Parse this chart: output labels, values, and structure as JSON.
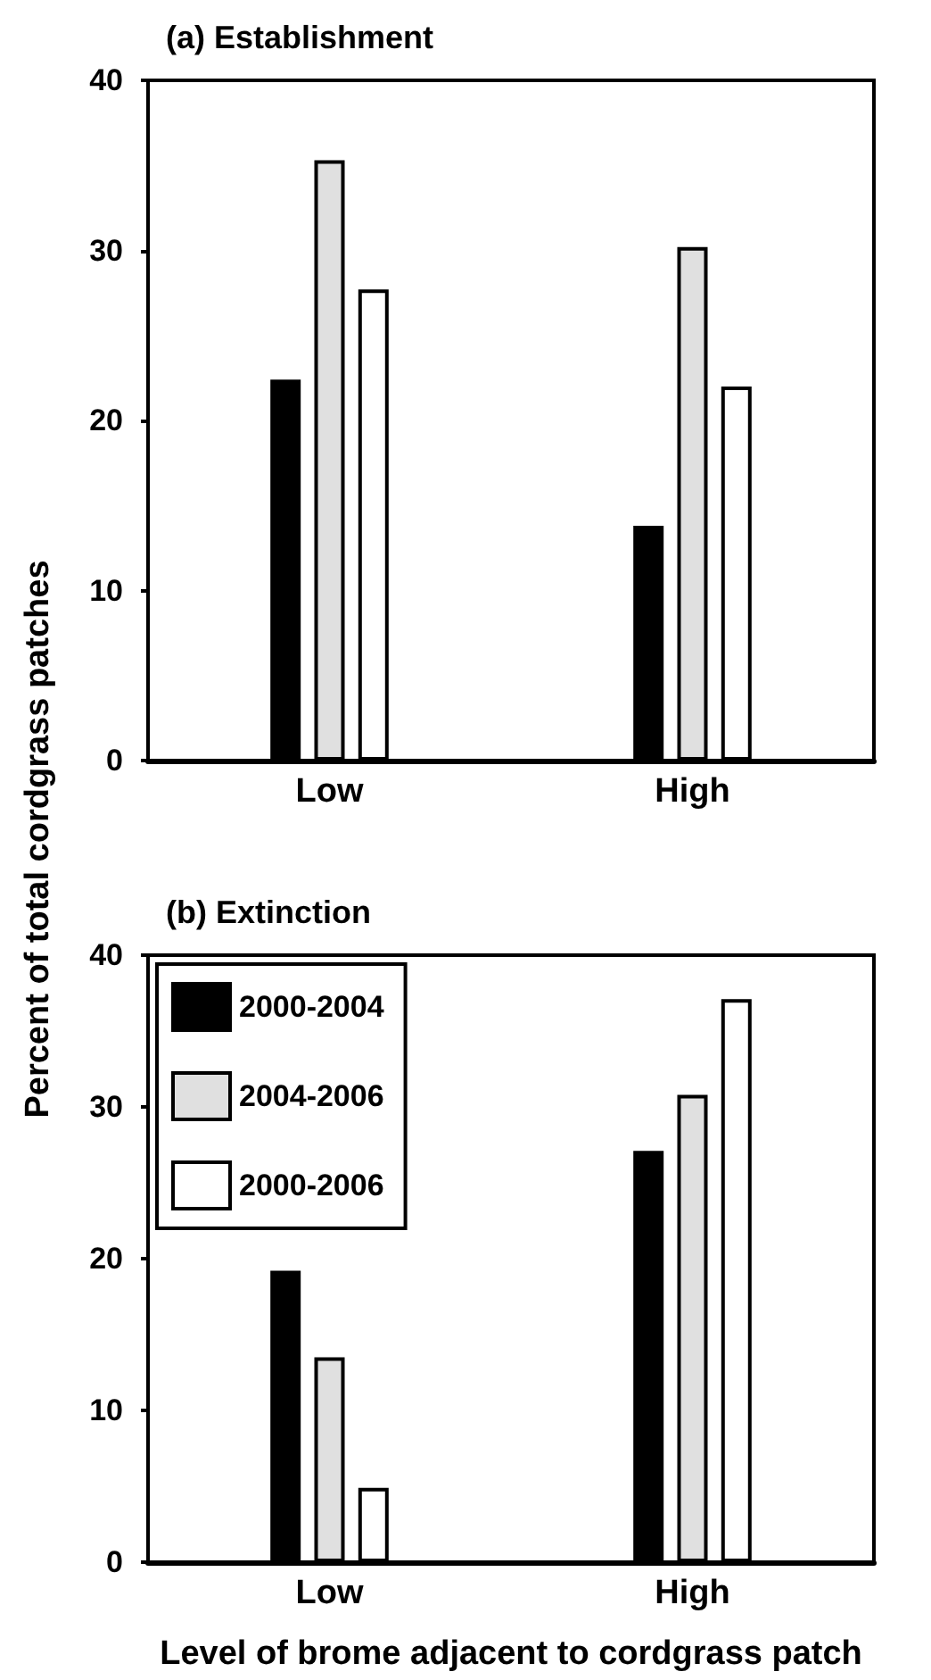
{
  "chart_data": [
    {
      "type": "bar",
      "title": "(a) Establishment",
      "ylabel": "Percent of total cordgrass patches",
      "categories": [
        "Low",
        "High"
      ],
      "series": [
        {
          "color": "#000000",
          "values": [
            22.4,
            13.8
          ]
        },
        {
          "color": "#e0e0e0",
          "values": [
            35.3,
            30.2
          ]
        },
        {
          "color": "#ffffff",
          "values": [
            27.7,
            22.0
          ]
        }
      ],
      "ylim": [
        0,
        40
      ],
      "yticks": [
        0,
        10,
        20,
        30,
        40
      ],
      "grid": false,
      "legend": false
    },
    {
      "type": "bar",
      "title": "(b) Extinction",
      "xlabel": "Level of brome adjacent to cordgrass patch",
      "categories": [
        "Low",
        "High"
      ],
      "series": [
        {
          "name": "2000-2004",
          "color": "#000000",
          "values": [
            19.2,
            27.1
          ]
        },
        {
          "name": "2004-2006",
          "color": "#e0e0e0",
          "values": [
            13.5,
            30.8
          ]
        },
        {
          "name": "2000-2006",
          "color": "#ffffff",
          "values": [
            4.9,
            37.1
          ]
        }
      ],
      "ylim": [
        0,
        40
      ],
      "yticks": [
        0,
        10,
        20,
        30,
        40
      ],
      "grid": false,
      "legend": "top left"
    }
  ]
}
